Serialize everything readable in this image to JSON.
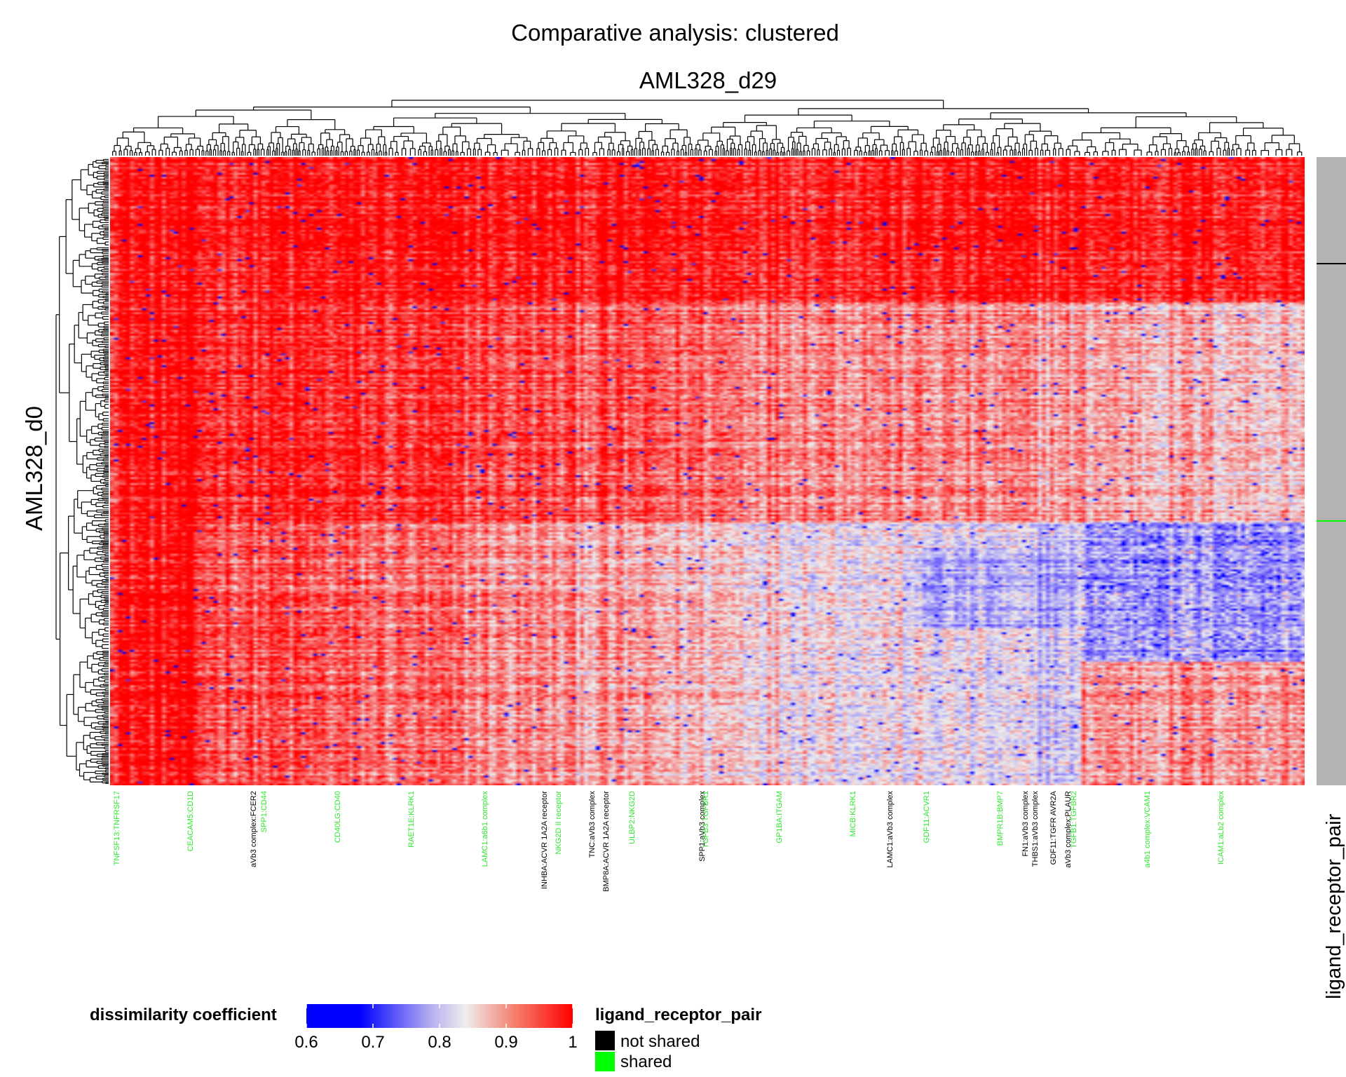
{
  "chart_data": {
    "type": "heatmap",
    "title": "Comparative analysis: clustered",
    "column_title": "AML328_d29",
    "row_title": "AML328_d0",
    "annotation_title": "ligand_receptor_pair",
    "colorbar": {
      "title": "dissimilarity coefficient",
      "ticks": [
        "0.6",
        "0.7",
        "0.8",
        "0.9",
        "1"
      ],
      "range": [
        0.6,
        1.0
      ],
      "low_color": "#0000ff",
      "mid_color": "#eeeeee",
      "high_color": "#ff0000"
    },
    "annotation_legend": {
      "title": "ligand_receptor_pair",
      "items": [
        {
          "label": "not shared",
          "color": "#000000"
        },
        {
          "label": "shared",
          "color": "#00ff00"
        }
      ]
    },
    "column_labels_visible": [
      {
        "label": "aVb3 complex:FCER2",
        "shared": false
      },
      {
        "label": "INHBA:ACVR 1A2A receptor",
        "shared": false
      },
      {
        "label": "TNC:aVb3 complex",
        "shared": false
      },
      {
        "label": "BMP8A:ACVR 1A2A receptor",
        "shared": false
      },
      {
        "label": "SPP1:aVb3 complex",
        "shared": false
      },
      {
        "label": "LAMC1:aVb3 complex",
        "shared": false
      },
      {
        "label": "FN1:aVb3 complex",
        "shared": false
      },
      {
        "label": "THBS1:aVb3 complex",
        "shared": false
      },
      {
        "label": "GDF11:TGFR AVR2A",
        "shared": false
      },
      {
        "label": "aVb3 complex:PLAUR",
        "shared": false
      },
      {
        "label": "TNFSF13:TNFRSF17",
        "shared": true
      },
      {
        "label": "CEACAM5:CD1D",
        "shared": true
      },
      {
        "label": "SPP1:CD44",
        "shared": true
      },
      {
        "label": "CD40LG:CD40",
        "shared": true
      },
      {
        "label": "RAET1E:KLRK1",
        "shared": true
      },
      {
        "label": "LAMC1:a6b1 complex",
        "shared": true
      },
      {
        "label": "NKG2D II receptor",
        "shared": true
      },
      {
        "label": "ULBP2:NKG2D",
        "shared": true
      },
      {
        "label": "TGFB3:TGFBR1",
        "shared": true
      },
      {
        "label": "GP1BA:ITGAM",
        "shared": true
      },
      {
        "label": "MICB:KLRK1",
        "shared": true
      },
      {
        "label": "GDF11:ACVR1",
        "shared": true
      },
      {
        "label": "BMPR1B:BMP7",
        "shared": true
      },
      {
        "label": "TGFB1:TGFBR2",
        "shared": true
      },
      {
        "label": "a4b1 complex:VCAM1",
        "shared": true
      },
      {
        "label": "ICAM1:aLb2 complex",
        "shared": true
      }
    ],
    "row_groups": [
      {
        "name": "not shared",
        "fraction": 0.17
      },
      {
        "name": "shared",
        "fraction": 0.83
      }
    ]
  }
}
